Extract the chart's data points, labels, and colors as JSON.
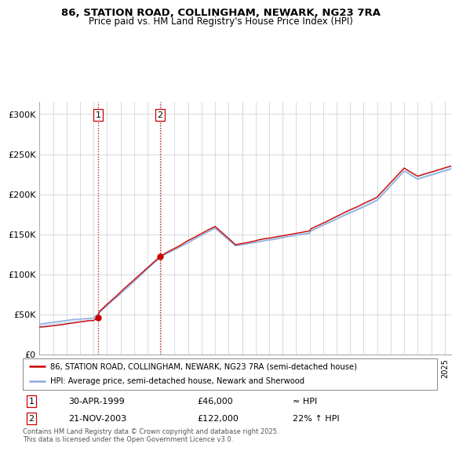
{
  "title_line1": "86, STATION ROAD, COLLINGHAM, NEWARK, NG23 7RA",
  "title_line2": "Price paid vs. HM Land Registry's House Price Index (HPI)",
  "ylim": [
    0,
    315000
  ],
  "yticks": [
    0,
    50000,
    100000,
    150000,
    200000,
    250000,
    300000
  ],
  "ytick_labels": [
    "£0",
    "£50K",
    "£100K",
    "£150K",
    "£200K",
    "£250K",
    "£300K"
  ],
  "transaction1_date": "30-APR-1999",
  "transaction1_price": 46000,
  "transaction1_note": "≈ HPI",
  "transaction2_date": "21-NOV-2003",
  "transaction2_price": 122000,
  "transaction2_note": "22% ↑ HPI",
  "legend_line1": "86, STATION ROAD, COLLINGHAM, NEWARK, NG23 7RA (semi-detached house)",
  "legend_line2": "HPI: Average price, semi-detached house, Newark and Sherwood",
  "footer": "Contains HM Land Registry data © Crown copyright and database right 2025.\nThis data is licensed under the Open Government Licence v3.0.",
  "price_line_color": "#cc0000",
  "hpi_line_color": "#88aadd",
  "shade_color": "#cce0f0",
  "vline_color": "#cc0000",
  "background_color": "#ffffff",
  "transaction1_x": 1999.33,
  "transaction2_x": 2003.9,
  "xlim_start": 1995,
  "xlim_end": 2025.5
}
